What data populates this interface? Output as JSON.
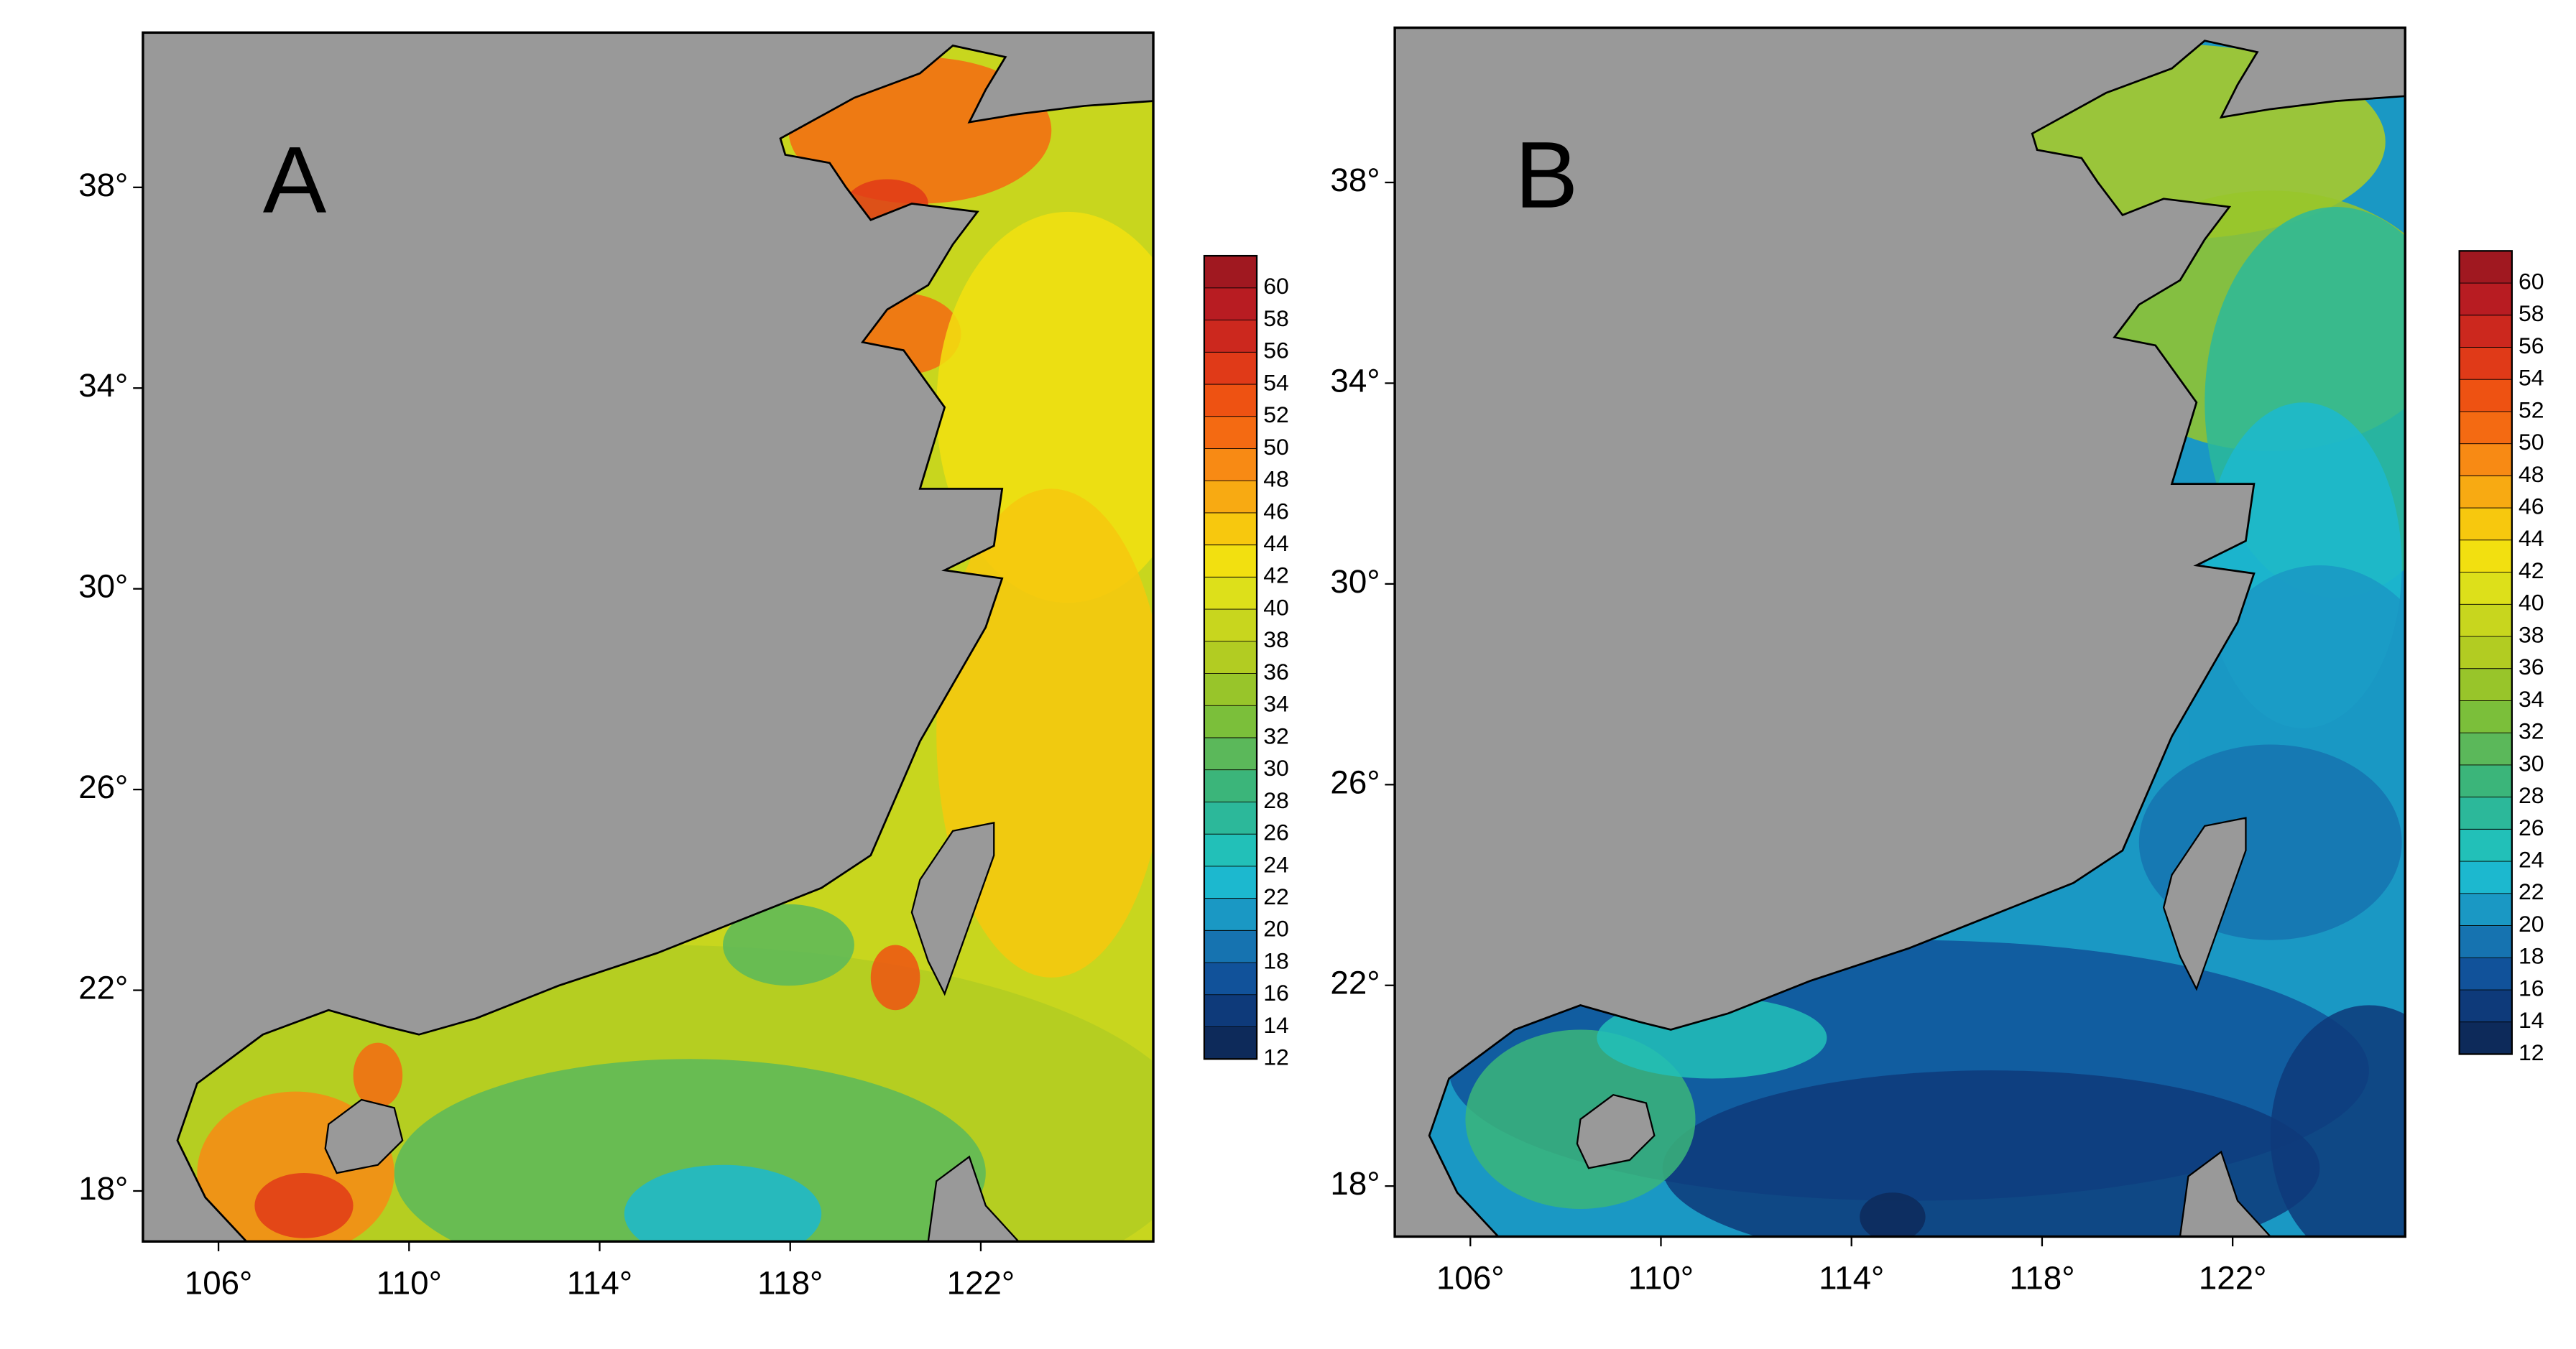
{
  "colorscale": [
    "#0d2a5a",
    "#0e3a7a",
    "#11529a",
    "#1673b0",
    "#1a98c4",
    "#1cb8cf",
    "#22c0b8",
    "#2cb89a",
    "#3bb57a",
    "#5bb85a",
    "#7bbf3a",
    "#98c52a",
    "#b2cc22",
    "#c8d61e",
    "#dde01a",
    "#f2e010",
    "#f7c80e",
    "#f8aa12",
    "#f88a14",
    "#f46a12",
    "#ee5212",
    "#e03a18",
    "#cc281e",
    "#b81c22",
    "#a01820"
  ],
  "panels": [
    {
      "label": "A",
      "xticks": [
        {
          "value": 106,
          "label": "106°"
        },
        {
          "value": 110,
          "label": "110°"
        },
        {
          "value": 114,
          "label": "114°"
        },
        {
          "value": 118,
          "label": "118°"
        },
        {
          "value": 122,
          "label": "122°"
        }
      ],
      "yticks": [
        {
          "value": 18,
          "label": "18°"
        },
        {
          "value": 22,
          "label": "22°"
        },
        {
          "value": 26,
          "label": "26°"
        },
        {
          "value": 30,
          "label": "30°"
        },
        {
          "value": 34,
          "label": "34°"
        },
        {
          "value": 38,
          "label": "38°"
        }
      ],
      "colorbar": {
        "ticks": [
          12,
          14,
          16,
          18,
          20,
          22,
          24,
          26,
          28,
          30,
          32,
          34,
          36,
          38,
          40,
          42,
          44,
          46,
          48,
          50,
          52,
          54,
          56,
          58,
          60
        ]
      }
    },
    {
      "label": "B",
      "xticks": [
        {
          "value": 106,
          "label": "106°"
        },
        {
          "value": 110,
          "label": "110°"
        },
        {
          "value": 114,
          "label": "114°"
        },
        {
          "value": 118,
          "label": "118°"
        },
        {
          "value": 122,
          "label": "122°"
        }
      ],
      "yticks": [
        {
          "value": 18,
          "label": "18°"
        },
        {
          "value": 22,
          "label": "22°"
        },
        {
          "value": 26,
          "label": "26°"
        },
        {
          "value": 30,
          "label": "30°"
        },
        {
          "value": 34,
          "label": "34°"
        },
        {
          "value": 38,
          "label": "38°"
        }
      ],
      "colorbar": {
        "ticks": [
          12,
          14,
          16,
          18,
          20,
          22,
          24,
          26,
          28,
          30,
          32,
          34,
          36,
          38,
          40,
          42,
          44,
          46,
          48,
          50,
          52,
          54,
          56,
          58,
          60
        ]
      }
    }
  ]
}
